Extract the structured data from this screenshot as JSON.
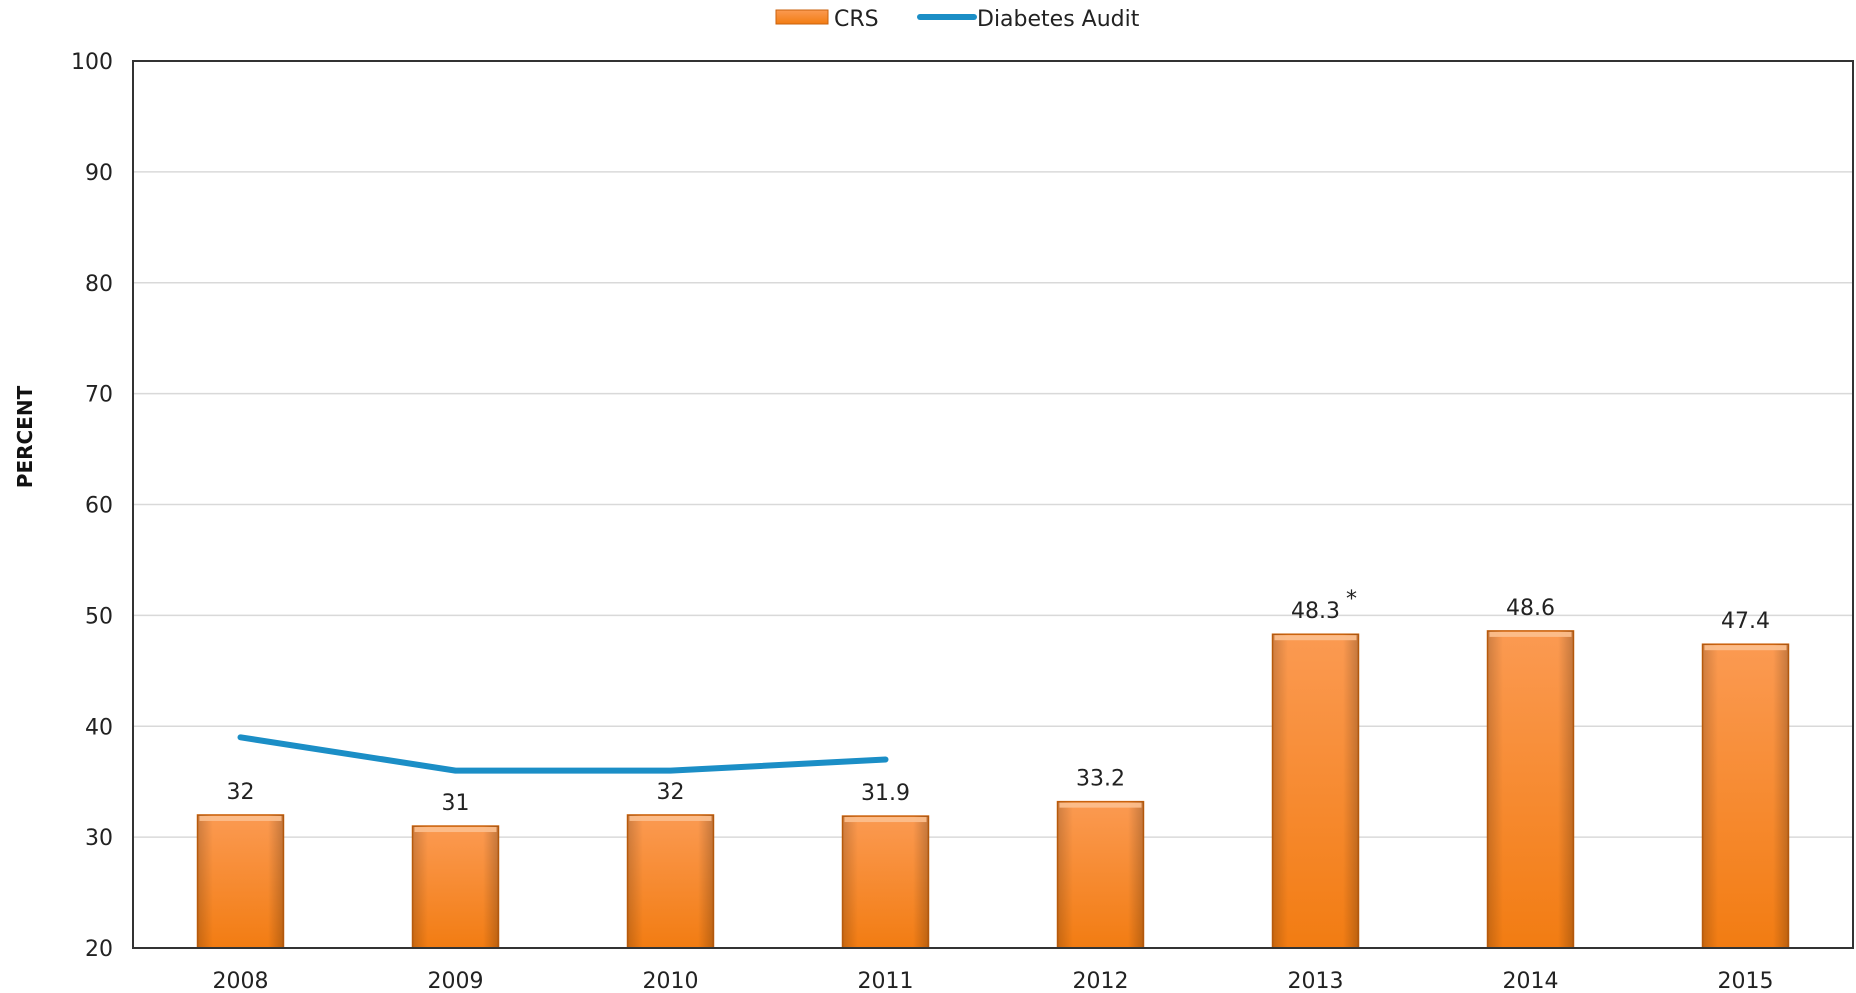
{
  "chart_data": {
    "type": "bar",
    "title": "",
    "xlabel": "",
    "ylabel": "PERCENT",
    "ylim": [
      20,
      100
    ],
    "yticks": [
      20,
      30,
      40,
      50,
      60,
      70,
      80,
      90,
      100
    ],
    "grid": true,
    "legend_position": "top-center",
    "categories": [
      "2008",
      "2009",
      "2010",
      "2011",
      "2012",
      "2013",
      "2014",
      "2015"
    ],
    "series": [
      {
        "name": "CRS",
        "type": "bar",
        "color": "#f58220",
        "values": [
          32,
          31,
          32,
          31.9,
          33.2,
          48.3,
          48.6,
          47.4
        ],
        "labels": [
          "32",
          "31",
          "32",
          "31.9",
          "33.2",
          "48.3",
          "48.6",
          "47.4"
        ]
      },
      {
        "name": "Diabetes Audit",
        "type": "line",
        "color": "#1b8ec6",
        "values": [
          39,
          36,
          36,
          37,
          null,
          null,
          null,
          null
        ]
      }
    ],
    "annotations": [
      {
        "category": "2013",
        "text": "*"
      }
    ]
  }
}
